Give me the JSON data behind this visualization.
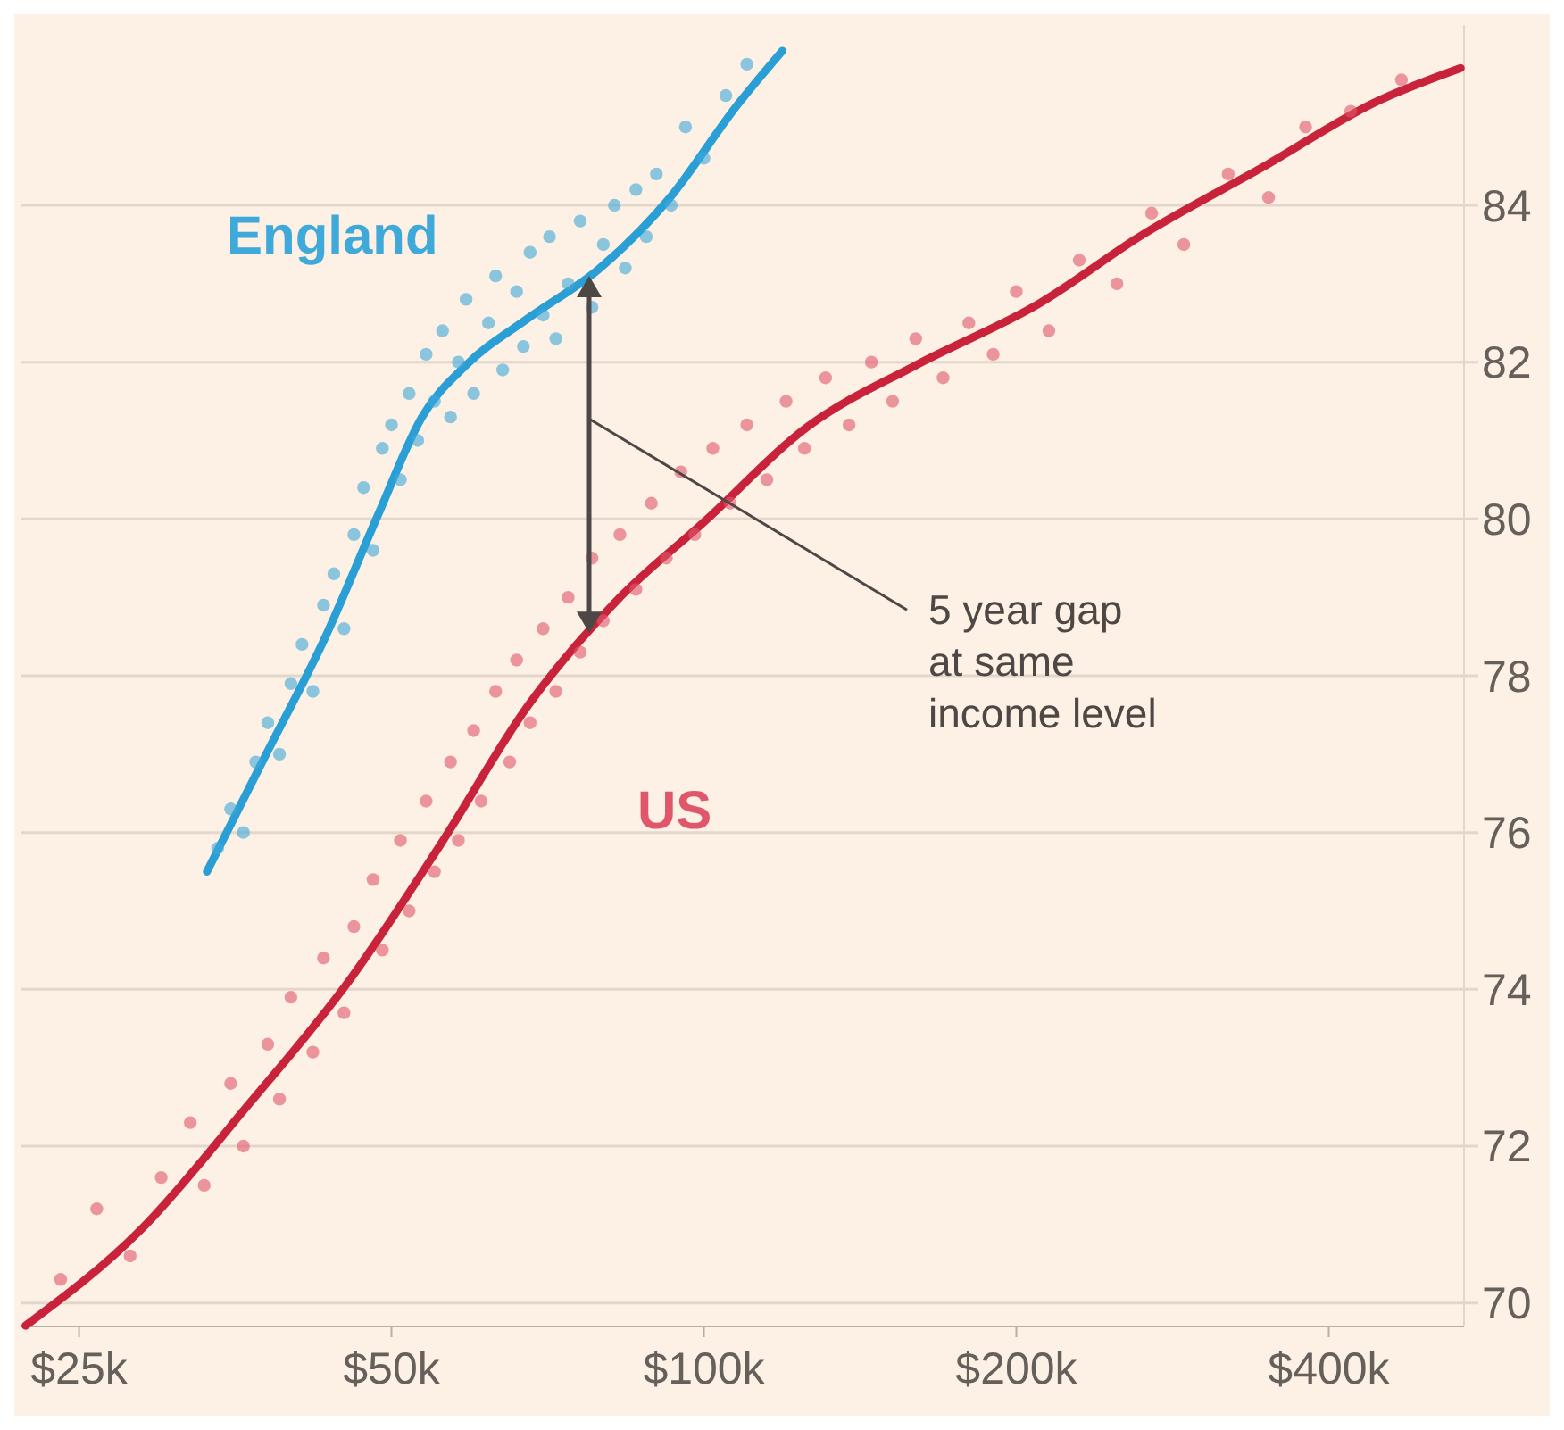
{
  "chart_data": {
    "type": "scatter",
    "log": "x",
    "grid": "y",
    "legend": false,
    "marker": "circle",
    "line_style": "solid",
    "xlim": [
      22,
      540
    ],
    "xticks": [
      {
        "value": 25,
        "label": "$25k"
      },
      {
        "value": 50,
        "label": "$50k"
      },
      {
        "value": 100,
        "label": "$100k"
      },
      {
        "value": 200,
        "label": "$200k"
      },
      {
        "value": 400,
        "label": "$400k"
      }
    ],
    "ylim": [
      69.7,
      86.3
    ],
    "yticks": [
      70,
      72,
      74,
      76,
      78,
      80,
      82,
      84
    ],
    "annotations": [
      "5 year gap\nat same\nincome level"
    ],
    "series": [
      {
        "name": "England",
        "color": "#3fa9d9",
        "x": [
          34,
          35,
          36,
          37,
          38,
          39,
          40,
          41,
          42,
          43,
          44,
          45,
          46,
          47,
          48,
          49,
          50,
          51,
          52,
          53,
          54,
          55,
          56,
          57,
          58,
          59,
          60,
          62,
          63,
          64,
          66,
          67,
          68,
          70,
          71,
          72,
          74,
          76,
          78,
          80,
          82,
          84,
          86,
          88,
          90,
          93,
          96,
          100,
          105,
          110
        ],
        "values": [
          75.8,
          76.3,
          76.0,
          76.9,
          77.4,
          77.0,
          77.9,
          78.4,
          77.8,
          78.9,
          79.3,
          78.6,
          79.8,
          80.4,
          79.6,
          80.9,
          81.2,
          80.5,
          81.6,
          81.0,
          82.1,
          81.5,
          82.4,
          81.3,
          82.0,
          82.8,
          81.6,
          82.5,
          83.1,
          81.9,
          82.9,
          82.2,
          83.4,
          82.6,
          83.6,
          82.3,
          83.0,
          83.8,
          82.7,
          83.5,
          84.0,
          83.2,
          84.2,
          83.6,
          84.4,
          84.0,
          85.0,
          84.6,
          85.4,
          85.8
        ]
      },
      {
        "type": "line",
        "marker": "none",
        "color": "#2a9fd6",
        "x": [
          33.2,
          37.7,
          43.2,
          48.6,
          53.5,
          59.0,
          67.7,
          79.1,
          92.5,
          108,
          119
        ],
        "values": [
          75.5,
          76.95,
          78.5,
          80.07,
          81.3,
          81.96,
          82.56,
          83.18,
          84.08,
          85.3,
          85.97
        ]
      },
      {
        "name": "US",
        "color": "#e0566a",
        "x": [
          24,
          26,
          28,
          30,
          32,
          33,
          35,
          36,
          38,
          39,
          40,
          42,
          43,
          45,
          46,
          48,
          49,
          51,
          52,
          54,
          55,
          57,
          58,
          60,
          61,
          63,
          65,
          66,
          68,
          70,
          72,
          74,
          76,
          78,
          80,
          83,
          86,
          89,
          92,
          95,
          98,
          102,
          106,
          110,
          115,
          120,
          125,
          131,
          138,
          145,
          152,
          160,
          170,
          180,
          190,
          200,
          215,
          230,
          250,
          270,
          290,
          320,
          350,
          380,
          420,
          470
        ],
        "values": [
          70.3,
          71.2,
          70.6,
          71.6,
          72.3,
          71.5,
          72.8,
          72.0,
          73.3,
          72.6,
          73.9,
          73.2,
          74.4,
          73.7,
          74.8,
          75.4,
          74.5,
          75.9,
          75.0,
          76.4,
          75.5,
          76.9,
          75.9,
          77.3,
          76.4,
          77.8,
          76.9,
          78.2,
          77.4,
          78.6,
          77.8,
          79.0,
          78.3,
          79.5,
          78.7,
          79.8,
          79.1,
          80.2,
          79.5,
          80.6,
          79.8,
          80.9,
          80.2,
          81.2,
          80.5,
          81.5,
          80.9,
          81.8,
          81.2,
          82.0,
          81.5,
          82.3,
          81.8,
          82.5,
          82.1,
          82.9,
          82.4,
          83.3,
          83.0,
          83.9,
          83.5,
          84.4,
          84.1,
          85.0,
          85.2,
          85.6
        ]
      },
      {
        "type": "line",
        "marker": "none",
        "color": "#c9233b",
        "x": [
          22.2,
          28.7,
          36.2,
          45.8,
          55.7,
          67.7,
          82.3,
          100,
          126,
          160,
          210,
          265,
          349,
          441,
          536
        ],
        "values": [
          69.71,
          70.94,
          72.49,
          74.16,
          75.84,
          77.62,
          78.95,
          79.96,
          81.18,
          81.96,
          82.74,
          83.63,
          84.52,
          85.3,
          85.75
        ]
      }
    ]
  }
}
